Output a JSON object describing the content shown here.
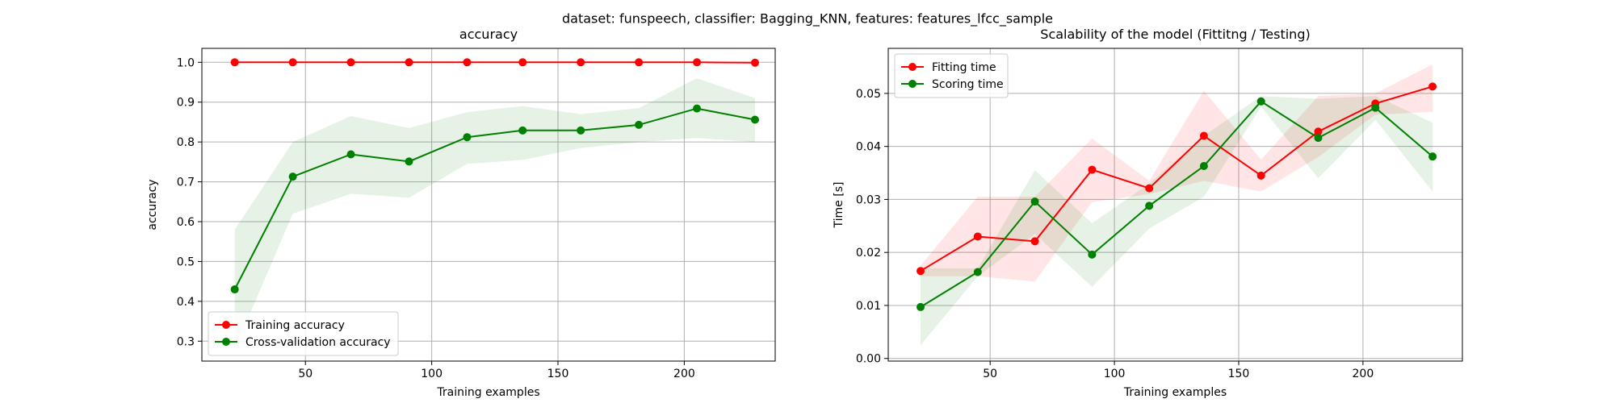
{
  "suptitle": "dataset: funspeech, classifier: Bagging_KNN, features: features_lfcc_sample",
  "colors": {
    "red": "#ff0000",
    "green": "#008000",
    "grid": "#b0b0b0"
  },
  "chart_data": [
    {
      "type": "line",
      "title": "accuracy",
      "xlabel": "Training examples",
      "ylabel": "accuracy",
      "xlim": [
        9,
        236
      ],
      "ylim": [
        0.25,
        1.035
      ],
      "xticks": [
        50,
        100,
        150,
        200
      ],
      "yticks": [
        0.3,
        0.4,
        0.5,
        0.6,
        0.7,
        0.8,
        0.9,
        1.0
      ],
      "grid": true,
      "legend_loc": "lower left",
      "x": [
        22,
        45,
        68,
        91,
        114,
        136,
        159,
        182,
        205,
        228
      ],
      "series": [
        {
          "name": "Training accuracy",
          "color": "#ff0000",
          "values": [
            1.0,
            1.0,
            1.0,
            1.0,
            1.0,
            1.0,
            1.0,
            1.0,
            1.0,
            0.999
          ],
          "band_low": [
            1.0,
            1.0,
            1.0,
            1.0,
            1.0,
            1.0,
            1.0,
            1.0,
            1.0,
            0.997
          ],
          "band_high": [
            1.0,
            1.0,
            1.0,
            1.0,
            1.0,
            1.0,
            1.0,
            1.0,
            1.0,
            1.0
          ]
        },
        {
          "name": "Cross-validation accuracy",
          "color": "#008000",
          "values": [
            0.43,
            0.713,
            0.769,
            0.751,
            0.812,
            0.829,
            0.829,
            0.843,
            0.884,
            0.856
          ],
          "band_low": [
            0.28,
            0.62,
            0.67,
            0.66,
            0.745,
            0.755,
            0.785,
            0.8,
            0.81,
            0.8
          ],
          "band_high": [
            0.58,
            0.8,
            0.865,
            0.835,
            0.875,
            0.89,
            0.87,
            0.885,
            0.96,
            0.91
          ]
        }
      ]
    },
    {
      "type": "line",
      "title": "Scalability of the model (Fittitng / Testing)",
      "xlabel": "Training examples",
      "ylabel": "Time [s]",
      "xlim": [
        9,
        240
      ],
      "ylim": [
        -0.0005,
        0.0585
      ],
      "xticks": [
        50,
        100,
        150,
        200
      ],
      "yticks": [
        0.0,
        0.01,
        0.02,
        0.03,
        0.04,
        0.05
      ],
      "grid": true,
      "legend_loc": "upper left",
      "x": [
        22,
        45,
        68,
        91,
        114,
        136,
        159,
        182,
        205,
        228
      ],
      "series": [
        {
          "name": "Fitting time",
          "color": "#ff0000",
          "values": [
            0.0165,
            0.023,
            0.0221,
            0.0356,
            0.0321,
            0.042,
            0.0345,
            0.0428,
            0.0481,
            0.0513
          ],
          "band_low": [
            0.0155,
            0.0155,
            0.0145,
            0.0295,
            0.031,
            0.0335,
            0.0315,
            0.038,
            0.046,
            0.0465
          ],
          "band_high": [
            0.0175,
            0.0305,
            0.0305,
            0.0415,
            0.0335,
            0.0505,
            0.0375,
            0.0495,
            0.05,
            0.0555
          ]
        },
        {
          "name": "Scoring time",
          "color": "#008000",
          "values": [
            0.0097,
            0.0163,
            0.0296,
            0.0196,
            0.0288,
            0.0363,
            0.0485,
            0.0416,
            0.0473,
            0.0381
          ],
          "band_low": [
            0.0025,
            0.0155,
            0.0235,
            0.0135,
            0.0245,
            0.0305,
            0.0475,
            0.034,
            0.045,
            0.0315
          ],
          "band_high": [
            0.017,
            0.017,
            0.0355,
            0.0255,
            0.033,
            0.042,
            0.0495,
            0.049,
            0.0495,
            0.0445
          ]
        }
      ]
    }
  ]
}
